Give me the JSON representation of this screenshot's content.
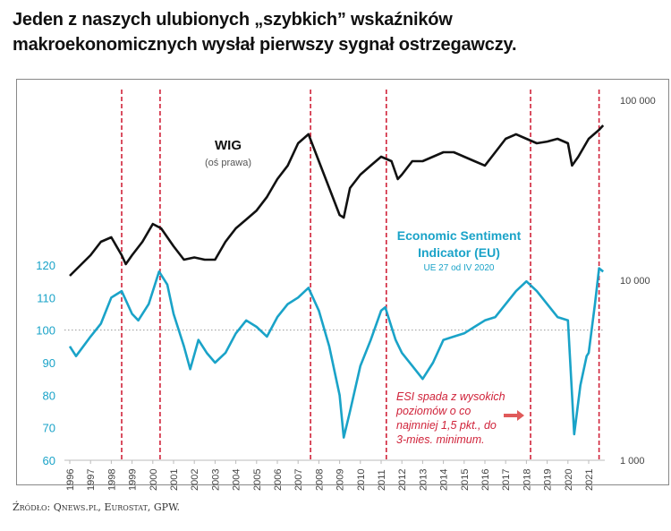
{
  "title_lines": [
    "Jeden z naszych ulubionych „szybkich” wskaźników",
    "makroekonomicznych wysłał pierwszy sygnał ostrzegawczy."
  ],
  "source": "Źródło: Qnews.pl, Eurostat, GPW.",
  "colors": {
    "esi": "#1aa3c8",
    "wig": "#111111",
    "signal": "#d0233a",
    "left_axis": "#1aa3c8"
  },
  "chart_data": {
    "type": "line",
    "xlim": [
      1996,
      2021.8
    ],
    "x_ticks": [
      "1996",
      "1997",
      "1998",
      "1999",
      "2000",
      "2001",
      "2002",
      "2003",
      "2004",
      "2005",
      "2006",
      "2007",
      "2008",
      "2009",
      "2010",
      "2011",
      "2012",
      "2013",
      "2014",
      "2015",
      "2016",
      "2017",
      "2018",
      "2019",
      "2020",
      "2021"
    ],
    "left_axis": {
      "ylim": [
        60,
        120
      ],
      "ticks": [
        "60",
        "70",
        "80",
        "90",
        "100",
        "110",
        "120"
      ],
      "reference_line": 100
    },
    "right_axis": {
      "scale": "log",
      "ylim": [
        1000,
        100000
      ],
      "ticks": [
        "1 000",
        "10 000",
        "100 000"
      ]
    },
    "series": [
      {
        "name": "WIG",
        "label": "WIG",
        "sublabel": "(oś prawa)",
        "axis": "right",
        "x": [
          1996,
          1997,
          1997.5,
          1998,
          1998.5,
          1998.7,
          1999,
          1999.5,
          2000,
          2000.4,
          2001,
          2001.5,
          2002,
          2002.5,
          2003,
          2003.5,
          2004,
          2004.5,
          2005,
          2005.5,
          2006,
          2006.5,
          2007,
          2007.5,
          2008,
          2008.5,
          2009,
          2009.2,
          2009.5,
          2010,
          2010.5,
          2011,
          2011.5,
          2011.8,
          2012,
          2012.5,
          2013,
          2013.5,
          2014,
          2014.5,
          2015,
          2015.5,
          2016,
          2016.5,
          2017,
          2017.5,
          2018,
          2018.5,
          2019,
          2019.5,
          2020,
          2020.2,
          2020.5,
          2021,
          2021.5,
          2021.7
        ],
        "values": [
          10590,
          13780,
          16370,
          17330,
          13780,
          12290,
          13780,
          16370,
          20560,
          19440,
          15460,
          13010,
          13390,
          13010,
          13010,
          16370,
          19440,
          21770,
          24420,
          29040,
          36500,
          43370,
          57700,
          64790,
          45900,
          32530,
          23060,
          22300,
          32530,
          38650,
          43370,
          48600,
          45900,
          36500,
          38650,
          45900,
          45900,
          48600,
          51450,
          51450,
          48600,
          45900,
          43370,
          51450,
          61100,
          64790,
          61100,
          57700,
          59000,
          61100,
          57700,
          43370,
          48600,
          61100,
          68500,
          72600
        ]
      },
      {
        "name": "Economic Sentiment Indicator (EU)",
        "label_lines": [
          "Economic Sentiment",
          "Indicator (EU)"
        ],
        "sublabel": "UE 27 od IV 2020",
        "axis": "left",
        "x": [
          1996,
          1996.3,
          1997,
          1997.5,
          1998,
          1998.5,
          1999,
          1999.3,
          1999.8,
          2000.3,
          2000.7,
          2001,
          2001.5,
          2001.8,
          2002.2,
          2002.6,
          2003,
          2003.5,
          2004,
          2004.5,
          2005,
          2005.5,
          2006,
          2006.5,
          2007,
          2007.5,
          2008,
          2008.5,
          2009,
          2009.2,
          2009.5,
          2010,
          2010.5,
          2011,
          2011.2,
          2011.7,
          2012,
          2012.5,
          2013,
          2013.5,
          2014,
          2014.5,
          2015,
          2015.5,
          2016,
          2016.5,
          2017,
          2017.5,
          2018,
          2018.5,
          2019,
          2019.5,
          2020,
          2020.3,
          2020.6,
          2020.9,
          2021,
          2021.3,
          2021.5,
          2021.7
        ],
        "values": [
          95,
          92,
          98,
          102,
          110,
          112,
          105,
          103,
          108,
          118,
          114,
          105,
          95,
          88,
          97,
          93,
          90,
          93,
          99,
          103,
          101,
          98,
          104,
          108,
          110,
          113,
          106,
          95,
          80,
          67,
          75,
          89,
          97,
          106,
          107,
          97,
          93,
          89,
          85,
          90,
          97,
          98,
          99,
          101,
          103,
          104,
          108,
          112,
          115,
          112,
          108,
          104,
          103,
          68,
          83,
          92,
          93,
          108,
          119,
          118
        ]
      }
    ],
    "signal_lines_x": [
      1998.5,
      2000.35,
      2007.6,
      2011.25,
      2018.2,
      2021.5
    ],
    "annotation_lines": [
      "ESI spada z wysokich",
      "poziomów o co",
      "najmniej 1,5 pkt., do",
      "3-mies. minimum."
    ]
  }
}
